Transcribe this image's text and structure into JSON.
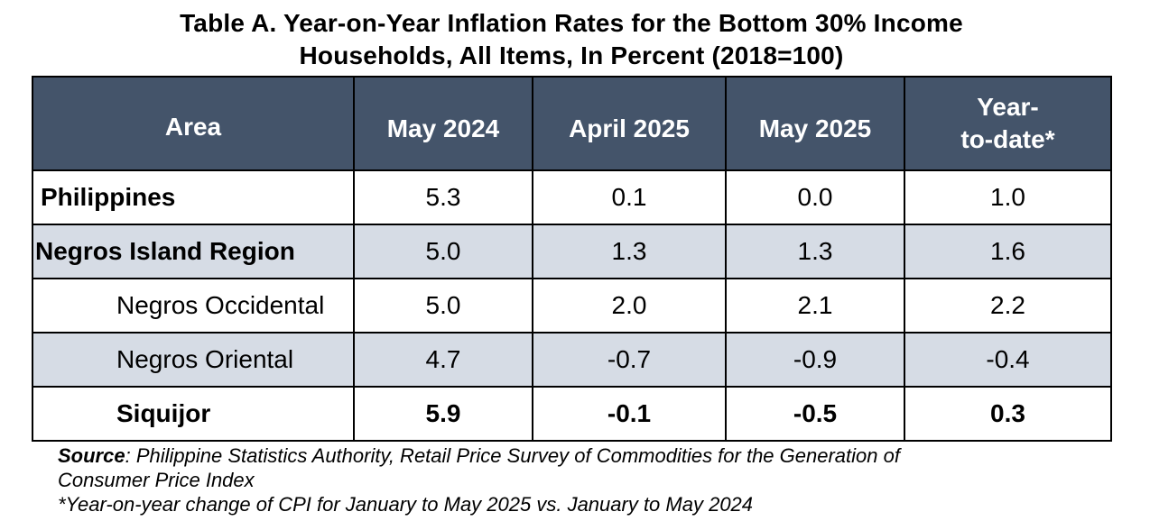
{
  "title": {
    "line1": "Table A. Year-on-Year Inflation Rates for the Bottom 30% Income",
    "line2": "Households, All Items, In Percent (2018=100)"
  },
  "table": {
    "headers": {
      "area": "Area",
      "may2024": "May 2024",
      "april2025": "April 2025",
      "may2025": "May 2025",
      "ytd_line1": "Year-",
      "ytd_line2": "to-date*"
    },
    "rows": [
      {
        "area": "Philippines",
        "may2024": "5.3",
        "april2025": "0.1",
        "may2025": "0.0",
        "ytd": "1.0"
      },
      {
        "area": "Negros Island Region",
        "may2024": "5.0",
        "april2025": "1.3",
        "may2025": "1.3",
        "ytd": "1.6"
      },
      {
        "area": "Negros Occidental",
        "may2024": "5.0",
        "april2025": "2.0",
        "may2025": "2.1",
        "ytd": "2.2"
      },
      {
        "area": "Negros Oriental",
        "may2024": "4.7",
        "april2025": "-0.7",
        "may2025": "-0.9",
        "ytd": "-0.4"
      },
      {
        "area": "Siquijor",
        "may2024": "5.9",
        "april2025": "-0.1",
        "may2025": "-0.5",
        "ytd": "0.3"
      }
    ]
  },
  "notes": {
    "source_label": "Source",
    "source_text": ": Philippine Statistics Authority, Retail Price Survey of Commodities for the Generation of",
    "source_text_line2": "Consumer Price Index",
    "footnote": "*Year-on-year change of CPI for January to May 2025 vs. January to May 2024"
  },
  "colors": {
    "header_bg": "#44546a",
    "header_text": "#ffffff",
    "shaded_row": "#d6dce5",
    "border": "#000000"
  }
}
